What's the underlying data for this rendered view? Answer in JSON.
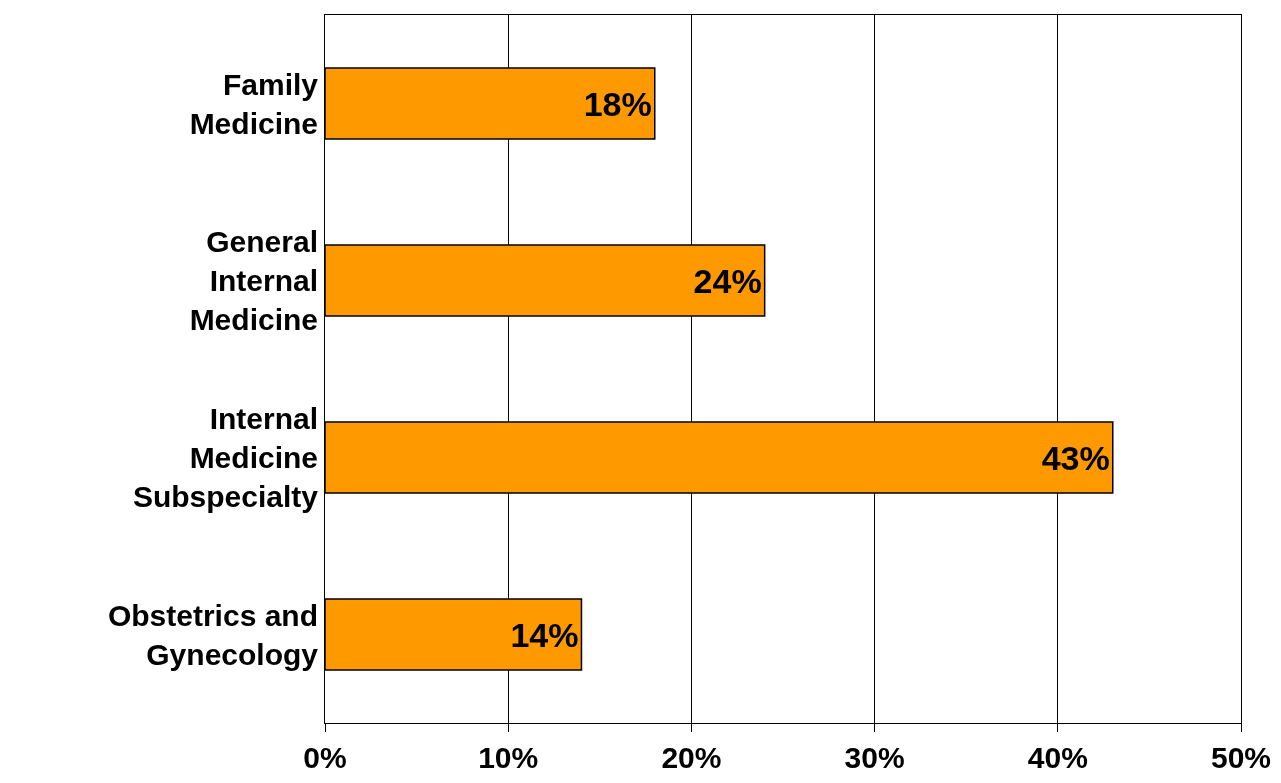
{
  "chart_data": {
    "type": "bar",
    "orientation": "horizontal",
    "categories": [
      "Family Medicine",
      "General Internal Medicine",
      "Internal Medicine Subspecialty",
      "Obstetrics and Gynecology"
    ],
    "values": [
      18,
      24,
      43,
      14
    ],
    "value_labels": [
      "18%",
      "24%",
      "43%",
      "14%"
    ],
    "color": "#ff9900",
    "xlim": [
      0,
      50
    ],
    "xticks": [
      {
        "value": 0,
        "label": "0%"
      },
      {
        "value": 10,
        "label": "10%"
      },
      {
        "value": 20,
        "label": "20%"
      },
      {
        "value": 30,
        "label": "30%"
      },
      {
        "value": 40,
        "label": "40%"
      },
      {
        "value": 50,
        "label": "50%"
      }
    ],
    "grid": "x"
  }
}
